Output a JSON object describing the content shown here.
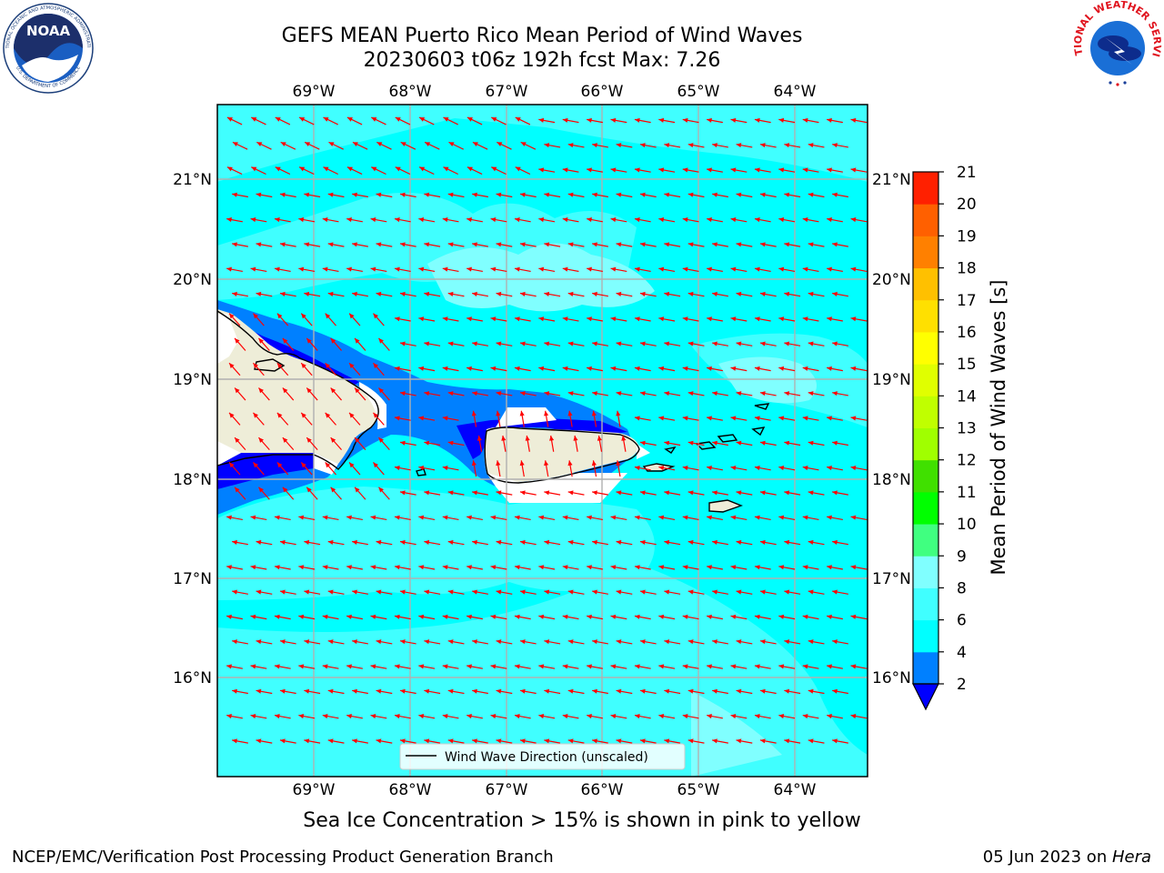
{
  "header": {
    "title_line1": "GEFS MEAN Puerto Rico Mean Period of Wind Waves",
    "title_line2": "20230603 t06z 192h fcst   Max: 7.26"
  },
  "logos": {
    "left": {
      "text": "NOAA",
      "ring_text": "NATIONAL OCEANIC AND ATMOSPHERIC ADMINISTRATION",
      "ring_text_bottom": "U.S. DEPARTMENT OF COMMERCE"
    },
    "right": {
      "ring_text": "NATIONAL WEATHER SERVICE"
    }
  },
  "map": {
    "lon_labels": [
      "69°W",
      "68°W",
      "67°W",
      "66°W",
      "65°W",
      "64°W"
    ],
    "lat_labels": [
      "21°N",
      "20°N",
      "19°N",
      "18°N",
      "17°N",
      "16°N"
    ],
    "legend_label": "Wind Wave Direction (unscaled)",
    "colors": {
      "ocean_main": "#00ffff",
      "ocean_light": "#40ffff",
      "ocean_lighter": "#80ffff",
      "band_mid": "#0080ff",
      "band_dark": "#0000ff",
      "land": "#eeedd8",
      "arrow": "#ff0000",
      "grid": "#b0b0b0"
    }
  },
  "colorbar": {
    "label": "Mean Period of Wind Waves [s]",
    "ticks": [
      "2",
      "4",
      "6",
      "8",
      "9",
      "10",
      "11",
      "12",
      "13",
      "14",
      "15",
      "16",
      "17",
      "18",
      "19",
      "20",
      "21"
    ],
    "colors": [
      "#0080ff",
      "#00ffff",
      "#40ffff",
      "#80ffff",
      "#40ff80",
      "#00ff00",
      "#40e000",
      "#a0ff00",
      "#c0ff00",
      "#e0ff00",
      "#ffff00",
      "#ffe000",
      "#ffc000",
      "#ff8000",
      "#ff6000",
      "#ff2000"
    ],
    "under_color": "#0000ff"
  },
  "caption": "Sea Ice Concentration > 15% is shown in pink to yellow",
  "footer": {
    "left": "NCEP/EMC/Verification Post Processing Product Generation Branch",
    "right_prefix": "05 Jun 2023 on ",
    "right_host": "Hera"
  }
}
